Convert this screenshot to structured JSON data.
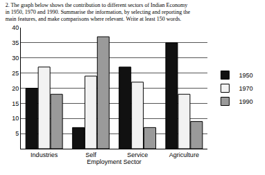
{
  "chart_data": {
    "type": "bar",
    "title": "2. The graph below shows the contribution to different sectors of Indian Economy in 1950, 1970 and 1990. Summarise the information, by selecting and reporting the main features, and make comparisons where relevant. Write at least 150 words.",
    "x_label": "Employment Sector",
    "categories": [
      "Industries",
      "Self",
      "Service",
      "Agriculture"
    ],
    "series": [
      {
        "name": "1950",
        "color": "#111111",
        "values": [
          20,
          7,
          27,
          35
        ]
      },
      {
        "name": "1970",
        "color": "#f2f2f2",
        "values": [
          27,
          24,
          22,
          18
        ]
      },
      {
        "name": "1990",
        "color": "#9a9a9a",
        "values": [
          18,
          37,
          7,
          9
        ]
      }
    ],
    "ylim": [
      0,
      40
    ],
    "yticks": [
      5,
      10,
      15,
      20,
      25,
      30,
      35,
      40
    ],
    "grid": true,
    "legend": "right"
  }
}
